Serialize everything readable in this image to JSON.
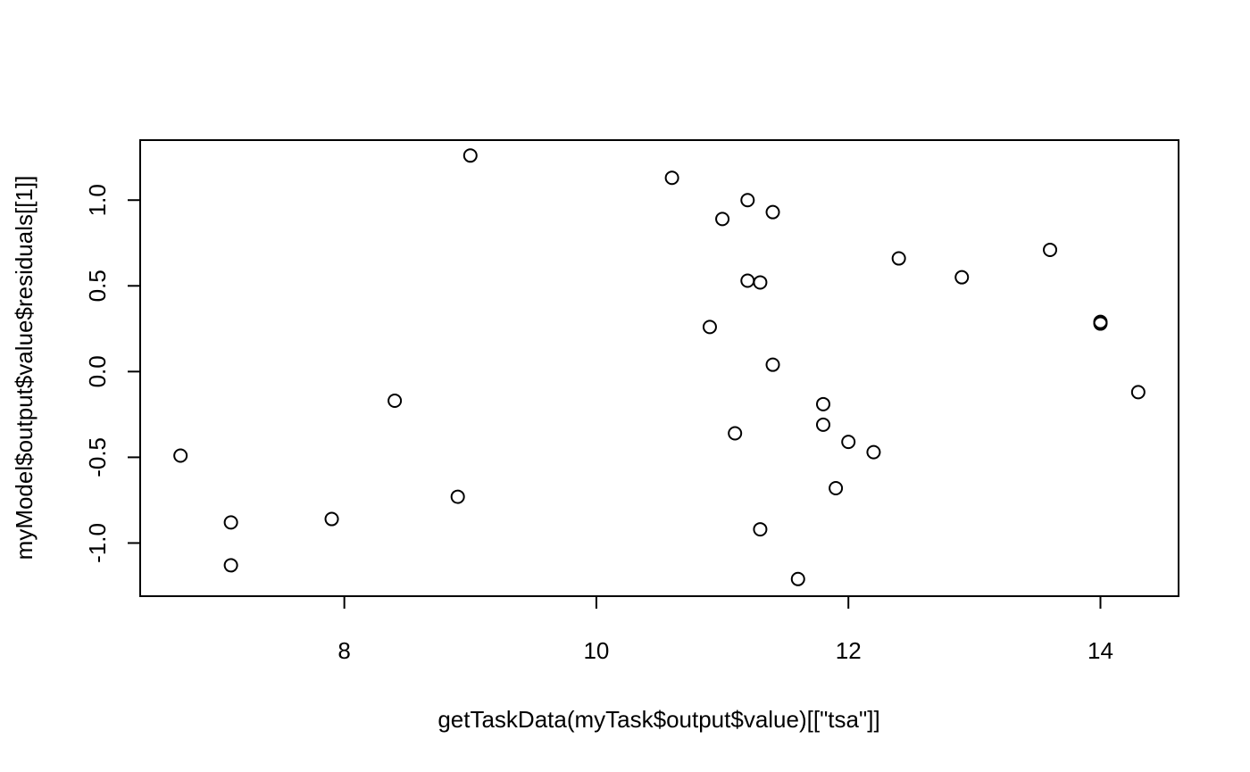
{
  "chart_data": {
    "type": "scatter",
    "title": "",
    "xlabel": "getTaskData(myTask$output$value)[[\"tsa\"]]",
    "ylabel": "myModel$output$value$residuals[[1]]",
    "xlim": [
      6.38,
      14.62
    ],
    "ylim": [
      -1.31,
      1.35
    ],
    "x_ticks": [
      8,
      10,
      12,
      14
    ],
    "x_tick_labels": [
      "8",
      "10",
      "12",
      "14"
    ],
    "y_ticks": [
      -1.0,
      -0.5,
      0.0,
      0.5,
      1.0
    ],
    "y_tick_labels": [
      "-1.0",
      "-0.5",
      "0.0",
      "0.5",
      "1.0"
    ],
    "grid": false,
    "point_color": "#000000",
    "points": [
      {
        "x": 6.7,
        "y": -0.49
      },
      {
        "x": 7.1,
        "y": -0.88
      },
      {
        "x": 7.1,
        "y": -1.13
      },
      {
        "x": 7.9,
        "y": -0.86
      },
      {
        "x": 8.4,
        "y": -0.17
      },
      {
        "x": 8.9,
        "y": -0.73
      },
      {
        "x": 9.0,
        "y": 1.26
      },
      {
        "x": 10.6,
        "y": 1.13
      },
      {
        "x": 10.9,
        "y": 0.26
      },
      {
        "x": 11.0,
        "y": 0.89
      },
      {
        "x": 11.1,
        "y": -0.36
      },
      {
        "x": 11.2,
        "y": 1.0
      },
      {
        "x": 11.2,
        "y": 0.53
      },
      {
        "x": 11.3,
        "y": 0.52
      },
      {
        "x": 11.3,
        "y": -0.92
      },
      {
        "x": 11.4,
        "y": 0.93
      },
      {
        "x": 11.4,
        "y": 0.04
      },
      {
        "x": 11.6,
        "y": -1.21
      },
      {
        "x": 11.8,
        "y": -0.19
      },
      {
        "x": 11.8,
        "y": -0.31
      },
      {
        "x": 11.9,
        "y": -0.68
      },
      {
        "x": 12.0,
        "y": -0.41
      },
      {
        "x": 12.2,
        "y": -0.47
      },
      {
        "x": 12.4,
        "y": 0.66
      },
      {
        "x": 12.9,
        "y": 0.55
      },
      {
        "x": 13.6,
        "y": 0.71
      },
      {
        "x": 14.0,
        "y": 0.29
      },
      {
        "x": 14.0,
        "y": 0.28
      },
      {
        "x": 14.3,
        "y": -0.12
      }
    ]
  }
}
